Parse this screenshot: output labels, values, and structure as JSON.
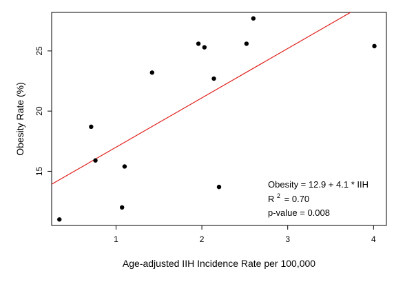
{
  "chart_data": {
    "type": "scatter",
    "xlabel": "Age-adjusted IIH Incidence Rate per 100,000",
    "ylabel": "Obesity Rate (%)",
    "xlim": [
      0.25,
      4.15
    ],
    "ylim": [
      10.5,
      28.2
    ],
    "xticks": [
      1,
      2,
      3,
      4
    ],
    "yticks": [
      15,
      20,
      25
    ],
    "grid": false,
    "points": [
      {
        "x": 0.34,
        "y": 11.0
      },
      {
        "x": 0.71,
        "y": 18.7
      },
      {
        "x": 0.76,
        "y": 15.9
      },
      {
        "x": 1.07,
        "y": 12.0
      },
      {
        "x": 1.1,
        "y": 15.4
      },
      {
        "x": 1.42,
        "y": 23.2
      },
      {
        "x": 1.96,
        "y": 25.6
      },
      {
        "x": 2.03,
        "y": 25.3
      },
      {
        "x": 2.14,
        "y": 22.7
      },
      {
        "x": 2.2,
        "y": 13.7
      },
      {
        "x": 2.52,
        "y": 25.6
      },
      {
        "x": 2.6,
        "y": 27.7
      },
      {
        "x": 4.01,
        "y": 25.4
      }
    ],
    "fit_line": {
      "intercept": 12.9,
      "slope": 4.1,
      "color": "#e0201b"
    },
    "point_color": "#000000",
    "annotations": {
      "equation": "Obesity = 12.9 + 4.1 * IIH",
      "r2_prefix": "R",
      "r2_sup": "2",
      "r2_value": "= 0.70",
      "pvalue": "p-value = 0.008"
    }
  }
}
